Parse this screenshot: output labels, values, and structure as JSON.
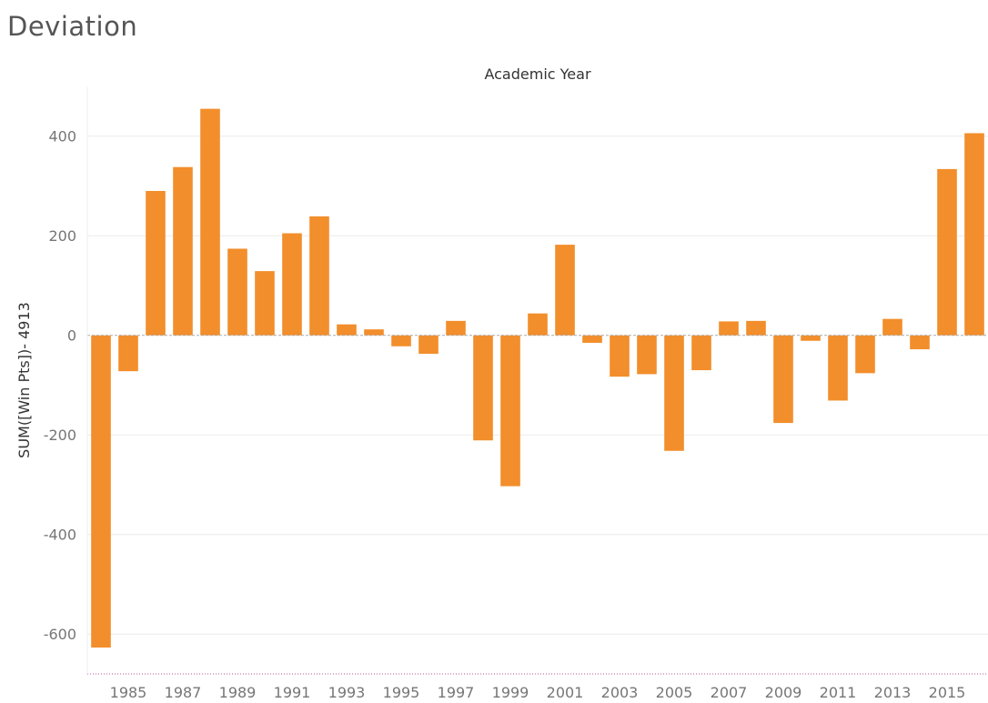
{
  "page": {
    "title": "Deviation"
  },
  "chart_data": {
    "type": "bar",
    "xlabel": "Academic Year",
    "ylabel": "SUM([Win Pts])- 4913",
    "ylim": [
      -680,
      500
    ],
    "yticks": [
      -600,
      -400,
      -200,
      0,
      200,
      400
    ],
    "grid": true,
    "bar_color": "#f28e2b",
    "categories": [
      "1984",
      "1985",
      "1986",
      "1987",
      "1988",
      "1989",
      "1990",
      "1991",
      "1992",
      "1993",
      "1994",
      "1995",
      "1996",
      "1997",
      "1998",
      "1999",
      "2000",
      "2001",
      "2002",
      "2003",
      "2004",
      "2005",
      "2006",
      "2007",
      "2008",
      "2009",
      "2010",
      "2011",
      "2012",
      "2013",
      "2014",
      "2015",
      "2016"
    ],
    "x_tick_labels": [
      "1985",
      "1987",
      "1989",
      "1991",
      "1993",
      "1995",
      "1997",
      "1999",
      "2001",
      "2003",
      "2005",
      "2007",
      "2009",
      "2011",
      "2013",
      "2015"
    ],
    "values": [
      -627,
      -72,
      290,
      338,
      455,
      174,
      129,
      205,
      239,
      22,
      12,
      -22,
      -37,
      29,
      -211,
      -303,
      44,
      182,
      -15,
      -83,
      -78,
      -232,
      -70,
      28,
      29,
      -176,
      -11,
      -131,
      -76,
      33,
      -28,
      334,
      406
    ]
  }
}
